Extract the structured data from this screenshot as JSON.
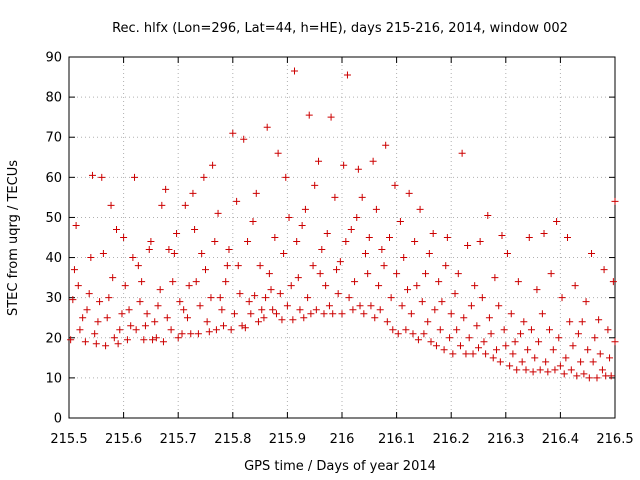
{
  "chart_data": {
    "type": "scatter",
    "title": "Rec. hlfx (Lon=296, Lat=44, h=HE), days 215-216, 2014, window 002",
    "xlabel": "GPS time / Days of year 2014",
    "ylabel": "STEC from uqrg / TECUs",
    "xlim": [
      215.5,
      216.5
    ],
    "ylim": [
      0,
      90
    ],
    "xticks": [
      "215.5",
      "215.6",
      "215.7",
      "215.8",
      "215.9",
      "216",
      "216.1",
      "216.2",
      "216.3",
      "216.4",
      "216.5"
    ],
    "yticks": [
      "0",
      "10",
      "20",
      "30",
      "40",
      "50",
      "60",
      "70",
      "80",
      "90"
    ],
    "grid": "dotted",
    "marker": "+",
    "color": "#cc0000",
    "series": [
      {
        "points": [
          [
            215.503,
            19.5
          ],
          [
            215.507,
            29.5
          ],
          [
            215.51,
            37
          ],
          [
            215.513,
            48
          ],
          [
            215.517,
            33
          ],
          [
            215.52,
            22
          ],
          [
            215.525,
            25
          ],
          [
            215.53,
            19
          ],
          [
            215.533,
            27
          ],
          [
            215.537,
            31
          ],
          [
            215.54,
            40
          ],
          [
            215.543,
            60.5
          ],
          [
            215.547,
            21
          ],
          [
            215.55,
            18.5
          ],
          [
            215.553,
            24
          ],
          [
            215.556,
            29
          ],
          [
            215.56,
            60
          ],
          [
            215.563,
            41
          ],
          [
            215.567,
            18
          ],
          [
            215.57,
            25
          ],
          [
            215.573,
            30
          ],
          [
            215.577,
            53
          ],
          [
            215.58,
            35
          ],
          [
            215.583,
            20
          ],
          [
            215.587,
            47
          ],
          [
            215.59,
            18.5
          ],
          [
            215.593,
            22
          ],
          [
            215.597,
            26
          ],
          [
            215.6,
            45
          ],
          [
            215.603,
            33
          ],
          [
            215.607,
            19.5
          ],
          [
            215.61,
            27
          ],
          [
            215.613,
            23
          ],
          [
            215.617,
            40
          ],
          [
            215.62,
            60
          ],
          [
            215.623,
            22
          ],
          [
            215.627,
            38
          ],
          [
            215.63,
            29
          ],
          [
            215.633,
            34
          ],
          [
            215.637,
            19.5
          ],
          [
            215.64,
            23
          ],
          [
            215.643,
            26
          ],
          [
            215.647,
            42
          ],
          [
            215.65,
            44
          ],
          [
            215.653,
            19.5
          ],
          [
            215.657,
            24
          ],
          [
            215.66,
            20
          ],
          [
            215.663,
            28
          ],
          [
            215.667,
            32
          ],
          [
            215.67,
            53
          ],
          [
            215.673,
            19
          ],
          [
            215.677,
            57
          ],
          [
            215.68,
            25
          ],
          [
            215.683,
            42
          ],
          [
            215.687,
            22
          ],
          [
            215.69,
            34
          ],
          [
            215.693,
            41
          ],
          [
            215.697,
            46
          ],
          [
            215.7,
            20
          ],
          [
            215.703,
            29
          ],
          [
            215.707,
            21
          ],
          [
            215.71,
            27
          ],
          [
            215.713,
            53
          ],
          [
            215.717,
            25
          ],
          [
            215.72,
            33
          ],
          [
            215.723,
            21
          ],
          [
            215.727,
            56
          ],
          [
            215.73,
            47
          ],
          [
            215.733,
            34
          ],
          [
            215.737,
            21
          ],
          [
            215.74,
            28
          ],
          [
            215.743,
            41
          ],
          [
            215.747,
            60
          ],
          [
            215.75,
            37
          ],
          [
            215.753,
            24
          ],
          [
            215.757,
            21.5
          ],
          [
            215.76,
            30
          ],
          [
            215.763,
            63
          ],
          [
            215.767,
            44
          ],
          [
            215.77,
            22
          ],
          [
            215.773,
            51
          ],
          [
            215.777,
            30
          ],
          [
            215.78,
            27
          ],
          [
            215.783,
            23
          ],
          [
            215.787,
            34
          ],
          [
            215.79,
            38
          ],
          [
            215.793,
            42
          ],
          [
            215.797,
            22
          ],
          [
            215.8,
            71
          ],
          [
            215.803,
            26
          ],
          [
            215.807,
            54
          ],
          [
            215.81,
            38
          ],
          [
            215.813,
            31
          ],
          [
            215.817,
            23
          ],
          [
            215.82,
            69.5
          ],
          [
            215.823,
            22.5
          ],
          [
            215.827,
            44
          ],
          [
            215.83,
            29
          ],
          [
            215.833,
            26
          ],
          [
            215.837,
            49
          ],
          [
            215.84,
            30.5
          ],
          [
            215.843,
            56
          ],
          [
            215.847,
            24
          ],
          [
            215.85,
            38
          ],
          [
            215.853,
            27
          ],
          [
            215.857,
            25
          ],
          [
            215.86,
            30
          ],
          [
            215.863,
            72.5
          ],
          [
            215.867,
            36
          ],
          [
            215.87,
            32
          ],
          [
            215.873,
            27
          ],
          [
            215.877,
            45
          ],
          [
            215.88,
            26
          ],
          [
            215.883,
            66
          ],
          [
            215.887,
            31
          ],
          [
            215.89,
            24.5
          ],
          [
            215.893,
            41
          ],
          [
            215.897,
            60
          ],
          [
            215.9,
            28
          ],
          [
            215.903,
            50
          ],
          [
            215.907,
            33
          ],
          [
            215.91,
            24.5
          ],
          [
            215.913,
            86.5
          ],
          [
            215.917,
            44
          ],
          [
            215.92,
            35
          ],
          [
            215.923,
            27
          ],
          [
            215.927,
            48
          ],
          [
            215.93,
            25
          ],
          [
            215.933,
            52
          ],
          [
            215.937,
            30
          ],
          [
            215.94,
            75.5
          ],
          [
            215.943,
            26
          ],
          [
            215.947,
            38
          ],
          [
            215.95,
            58
          ],
          [
            215.953,
            27
          ],
          [
            215.957,
            64
          ],
          [
            215.96,
            36
          ],
          [
            215.963,
            42
          ],
          [
            215.967,
            26
          ],
          [
            215.97,
            33
          ],
          [
            215.973,
            46
          ],
          [
            215.977,
            28
          ],
          [
            215.98,
            75
          ],
          [
            215.983,
            26
          ],
          [
            215.987,
            55
          ],
          [
            215.99,
            37
          ],
          [
            215.993,
            31
          ],
          [
            215.997,
            39
          ],
          [
            216,
            26
          ],
          [
            216.003,
            63
          ],
          [
            216.007,
            44
          ],
          [
            216.01,
            85.5
          ],
          [
            216.013,
            30
          ],
          [
            216.017,
            47
          ],
          [
            216.02,
            27
          ],
          [
            216.023,
            34
          ],
          [
            216.027,
            50
          ],
          [
            216.03,
            62
          ],
          [
            216.033,
            28
          ],
          [
            216.037,
            55
          ],
          [
            216.04,
            26
          ],
          [
            216.043,
            41
          ],
          [
            216.047,
            36
          ],
          [
            216.05,
            45
          ],
          [
            216.053,
            28
          ],
          [
            216.057,
            64
          ],
          [
            216.06,
            25
          ],
          [
            216.063,
            52
          ],
          [
            216.067,
            33
          ],
          [
            216.07,
            27
          ],
          [
            216.073,
            42
          ],
          [
            216.077,
            38
          ],
          [
            216.08,
            68
          ],
          [
            216.083,
            24
          ],
          [
            216.087,
            45
          ],
          [
            216.09,
            30
          ],
          [
            216.093,
            22
          ],
          [
            216.097,
            58
          ],
          [
            216.1,
            36
          ],
          [
            216.103,
            21
          ],
          [
            216.107,
            49
          ],
          [
            216.11,
            28
          ],
          [
            216.113,
            40
          ],
          [
            216.117,
            22
          ],
          [
            216.12,
            32
          ],
          [
            216.123,
            56
          ],
          [
            216.127,
            26
          ],
          [
            216.13,
            21
          ],
          [
            216.133,
            44
          ],
          [
            216.137,
            33
          ],
          [
            216.14,
            19.5
          ],
          [
            216.143,
            52
          ],
          [
            216.147,
            29
          ],
          [
            216.15,
            21
          ],
          [
            216.153,
            36
          ],
          [
            216.157,
            24
          ],
          [
            216.16,
            41
          ],
          [
            216.163,
            19
          ],
          [
            216.167,
            46
          ],
          [
            216.17,
            27
          ],
          [
            216.173,
            18
          ],
          [
            216.177,
            34
          ],
          [
            216.18,
            22
          ],
          [
            216.183,
            29
          ],
          [
            216.187,
            17
          ],
          [
            216.19,
            38
          ],
          [
            216.193,
            45
          ],
          [
            216.197,
            20
          ],
          [
            216.2,
            26
          ],
          [
            216.203,
            16
          ],
          [
            216.207,
            31
          ],
          [
            216.21,
            22
          ],
          [
            216.213,
            36
          ],
          [
            216.217,
            18
          ],
          [
            216.22,
            66
          ],
          [
            216.223,
            25
          ],
          [
            216.227,
            16
          ],
          [
            216.23,
            43
          ],
          [
            216.233,
            20
          ],
          [
            216.237,
            28
          ],
          [
            216.24,
            16
          ],
          [
            216.243,
            33
          ],
          [
            216.247,
            23
          ],
          [
            216.25,
            17.5
          ],
          [
            216.253,
            44
          ],
          [
            216.257,
            30
          ],
          [
            216.26,
            19
          ],
          [
            216.263,
            16
          ],
          [
            216.267,
            50.5
          ],
          [
            216.27,
            25
          ],
          [
            216.273,
            21
          ],
          [
            216.277,
            15
          ],
          [
            216.28,
            35
          ],
          [
            216.283,
            17
          ],
          [
            216.287,
            28
          ],
          [
            216.29,
            14
          ],
          [
            216.293,
            45.5
          ],
          [
            216.297,
            22
          ],
          [
            216.3,
            18
          ],
          [
            216.303,
            41
          ],
          [
            216.307,
            13
          ],
          [
            216.31,
            26
          ],
          [
            216.313,
            16
          ],
          [
            216.317,
            19
          ],
          [
            216.32,
            12
          ],
          [
            216.323,
            34
          ],
          [
            216.327,
            21
          ],
          [
            216.33,
            14
          ],
          [
            216.333,
            24
          ],
          [
            216.337,
            12
          ],
          [
            216.34,
            17
          ],
          [
            216.343,
            45
          ],
          [
            216.347,
            22
          ],
          [
            216.35,
            11.5
          ],
          [
            216.353,
            15
          ],
          [
            216.357,
            32
          ],
          [
            216.36,
            19
          ],
          [
            216.363,
            12
          ],
          [
            216.367,
            26
          ],
          [
            216.37,
            46
          ],
          [
            216.373,
            14
          ],
          [
            216.377,
            11.5
          ],
          [
            216.38,
            22
          ],
          [
            216.383,
            36
          ],
          [
            216.387,
            17
          ],
          [
            216.39,
            12
          ],
          [
            216.393,
            49
          ],
          [
            216.397,
            20
          ],
          [
            216.4,
            13
          ],
          [
            216.403,
            30
          ],
          [
            216.407,
            11
          ],
          [
            216.41,
            15
          ],
          [
            216.413,
            45
          ],
          [
            216.417,
            24
          ],
          [
            216.42,
            12
          ],
          [
            216.423,
            18
          ],
          [
            216.427,
            33
          ],
          [
            216.43,
            10.5
          ],
          [
            216.433,
            21
          ],
          [
            216.437,
            14
          ],
          [
            216.44,
            24
          ],
          [
            216.443,
            11
          ],
          [
            216.447,
            29
          ],
          [
            216.45,
            17
          ],
          [
            216.453,
            10
          ],
          [
            216.457,
            41
          ],
          [
            216.46,
            14
          ],
          [
            216.463,
            20
          ],
          [
            216.467,
            10
          ],
          [
            216.47,
            24.5
          ],
          [
            216.473,
            16
          ],
          [
            216.477,
            12
          ],
          [
            216.48,
            37
          ],
          [
            216.483,
            10.5
          ],
          [
            216.487,
            22
          ],
          [
            216.49,
            15
          ],
          [
            216.493,
            10.5
          ],
          [
            216.497,
            34
          ],
          [
            216.5,
            19
          ],
          [
            216.5,
            54
          ]
        ]
      }
    ]
  }
}
